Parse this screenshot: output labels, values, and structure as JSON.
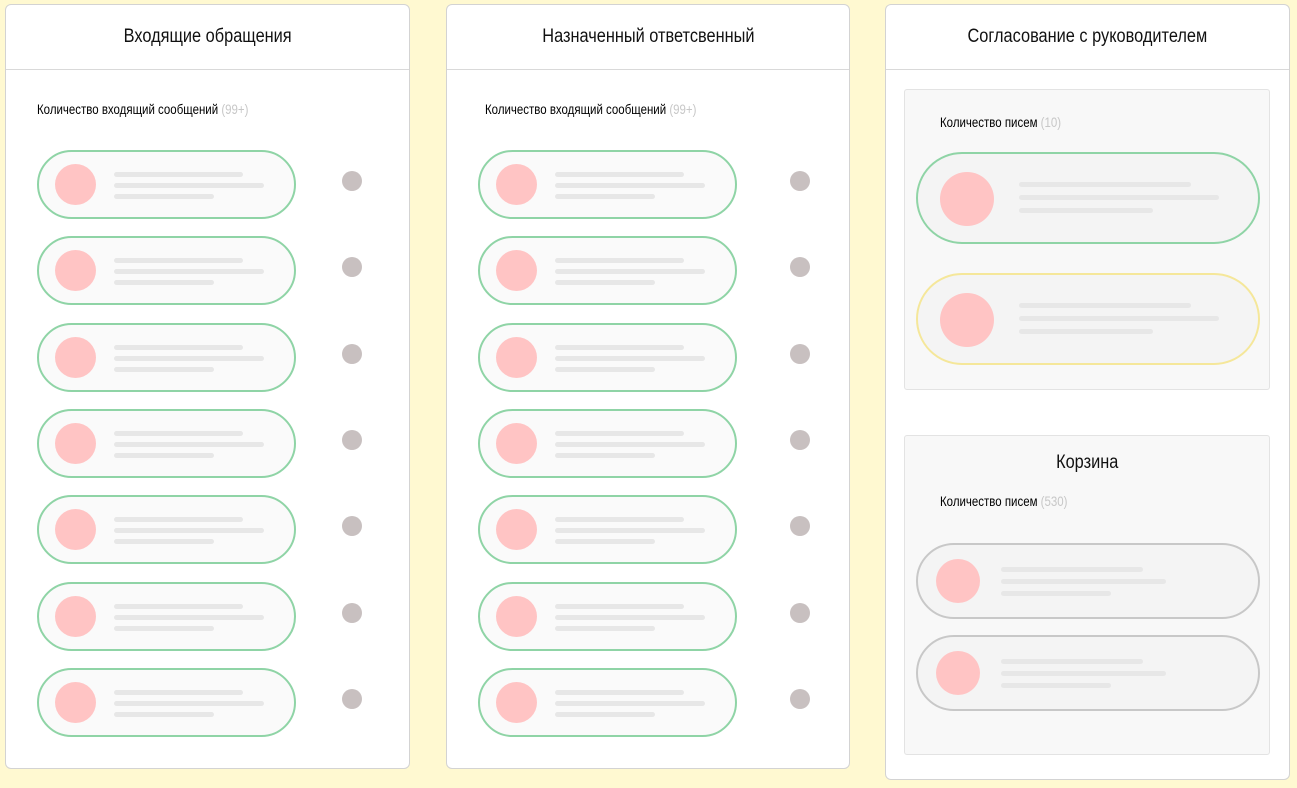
{
  "background_color": "#fff9d1",
  "accent_colors": {
    "active_border": "#8fd4a6",
    "pending_border": "#f5e79a",
    "trash_border": "#c8c8c8",
    "avatar": "#ffc4c4",
    "status_dot": "#c8c0c0"
  },
  "columns": [
    {
      "title": "Входящие обращения",
      "count_label": "Количество входящий сообщений",
      "count_value": "(99+)",
      "cards": 7
    },
    {
      "title": "Назначенный ответсвенный",
      "count_label": "Количество входящий сообщений",
      "count_value": "(99+)",
      "cards": 7
    },
    {
      "title": "Согласование с руководителем",
      "approval": {
        "count_label": "Количество писем",
        "count_value": "(10)"
      },
      "trash": {
        "title": "Корзина",
        "count_label": "Количество писем",
        "count_value": "(530)"
      }
    }
  ]
}
